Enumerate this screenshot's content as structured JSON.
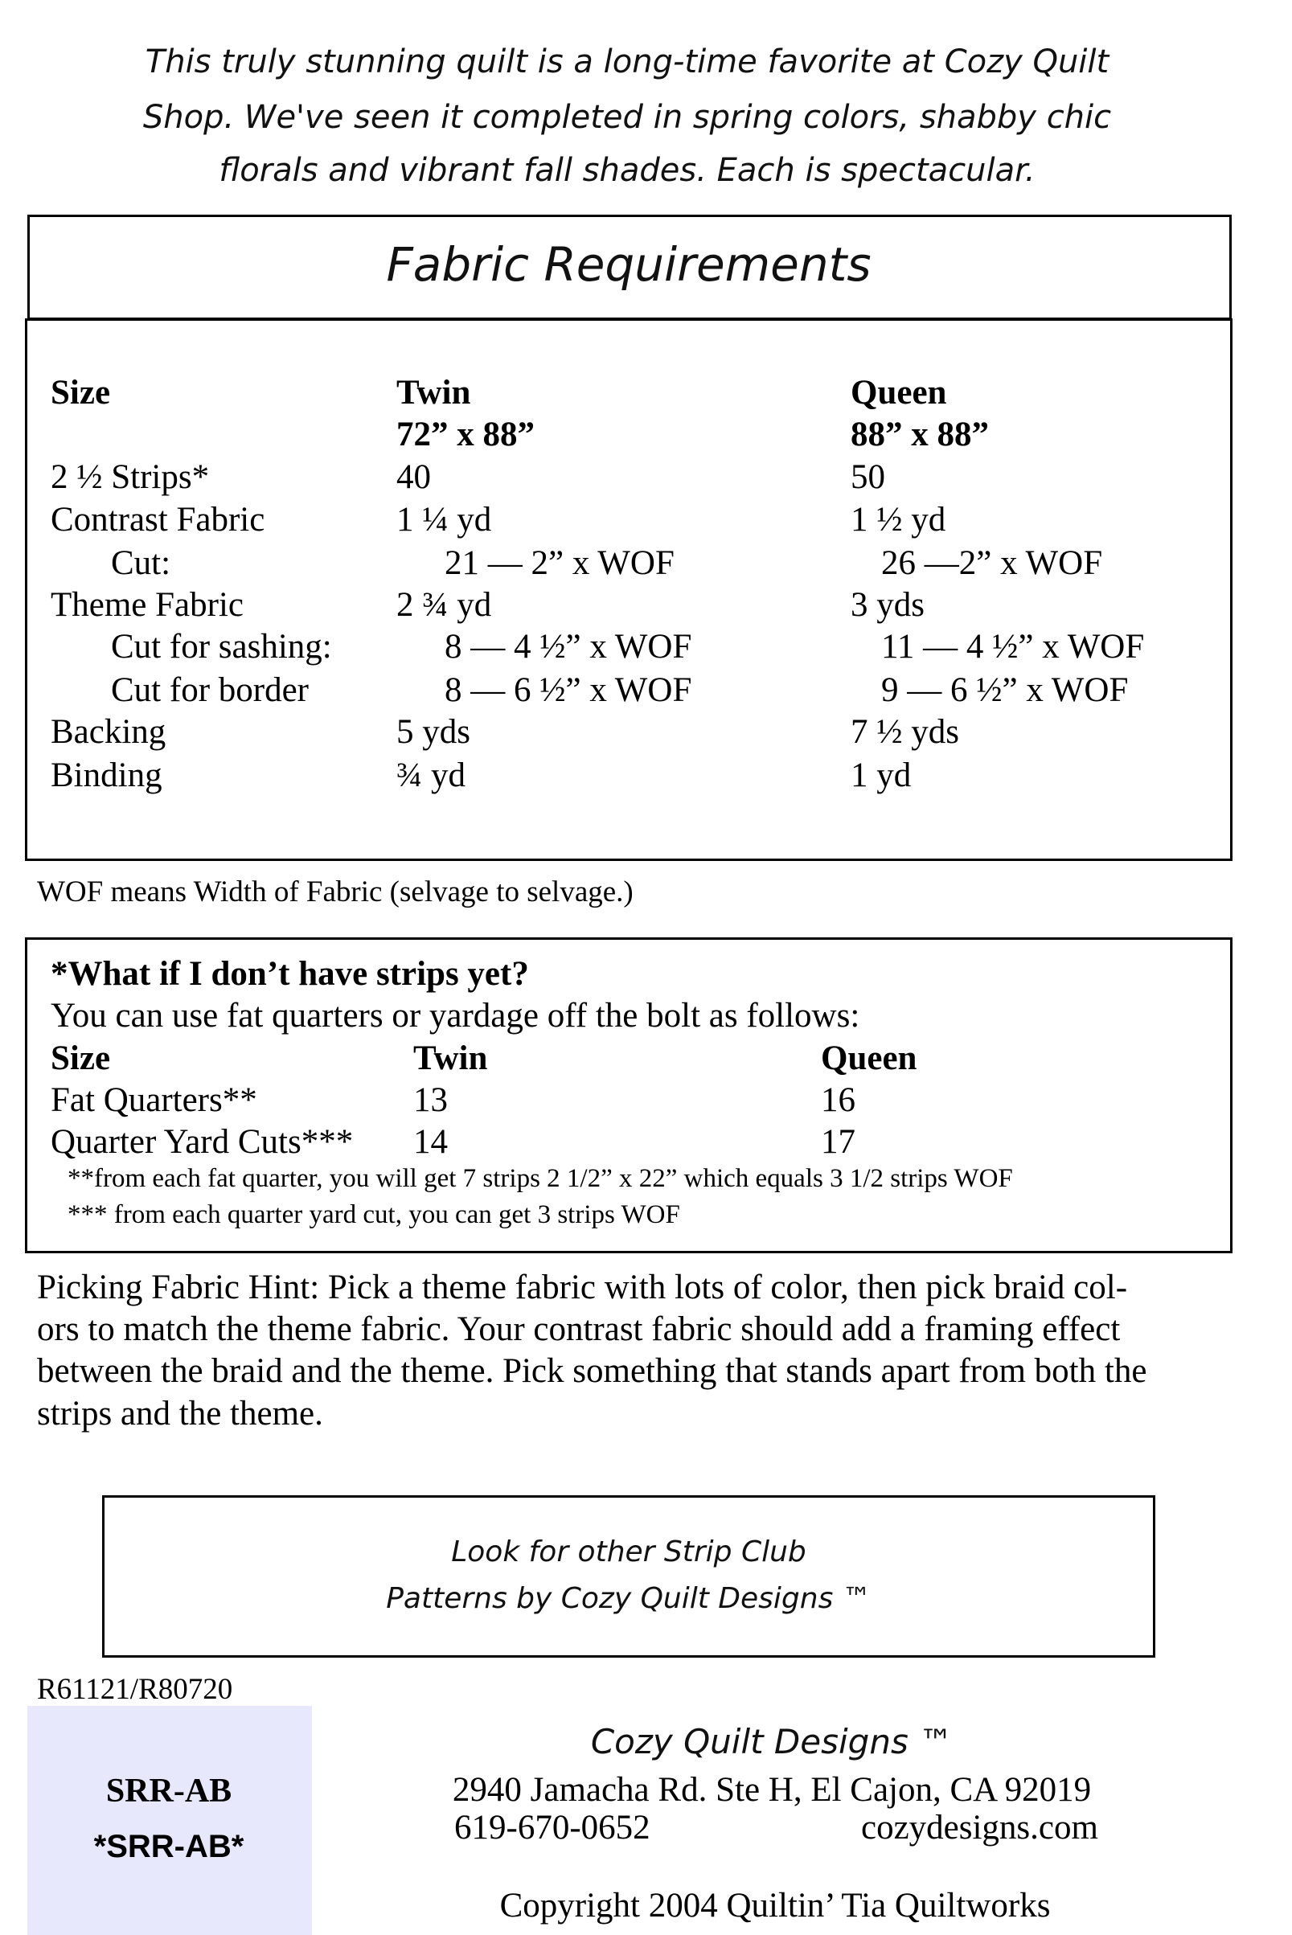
{
  "intro": {
    "lines": [
      "This truly stunning quilt is a long-time favorite at Cozy Quilt",
      "Shop. We've seen it completed in spring colors, shabby chic",
      "florals and vibrant fall shades. Each is spectacular."
    ]
  },
  "fabric_requirements": {
    "title": "Fabric Requirements",
    "headers": {
      "size": "Size",
      "twin": "Twin",
      "twin_dims": "72” x 88”",
      "queen": "Queen",
      "queen_dims": "88” x 88”"
    },
    "rows": [
      {
        "label": "2 ½ Strips*",
        "twin": "40",
        "queen": "50"
      },
      {
        "label": "Contrast Fabric",
        "twin": "1 ¼ yd",
        "queen": "1 ½ yd"
      },
      {
        "label": "Cut:",
        "twin": "21 — 2” x WOF",
        "queen": "26 —2” x WOF"
      },
      {
        "label": "Theme Fabric",
        "twin": "2 ¾ yd",
        "queen": "3 yds"
      },
      {
        "label": "Cut for sashing:",
        "twin": "8 — 4 ½” x WOF",
        "queen": "11 — 4 ½” x WOF"
      },
      {
        "label": "Cut for border",
        "twin": "8 — 6 ½” x WOF",
        "queen": "9 — 6 ½” x WOF"
      },
      {
        "label": "Backing",
        "twin": "5 yds",
        "queen": "7 ½ yds"
      },
      {
        "label": "Binding",
        "twin": "¾  yd",
        "queen": "1 yd"
      }
    ],
    "note": "WOF means Width of Fabric (selvage to selvage.)"
  },
  "strips_box": {
    "question": "*What if I don’t have strips yet?",
    "intro": "You can use fat quarters or yardage off the bolt as follows:",
    "headers": {
      "size": "Size",
      "twin": "Twin",
      "queen": "Queen"
    },
    "rows": [
      {
        "label": "Fat Quarters**",
        "twin": "13",
        "queen": "16"
      },
      {
        "label": "Quarter Yard Cuts***",
        "twin": "14",
        "queen": "17"
      }
    ],
    "notes": [
      "**from each fat quarter, you will get 7 strips 2 1/2” x 22” which equals 3 1/2 strips WOF",
      "*** from each quarter yard cut, you can get 3 strips WOF"
    ]
  },
  "hint": {
    "lines": [
      "Picking Fabric Hint: Pick a theme fabric with lots of color, then pick braid col-",
      "ors to match the theme fabric. Your contrast fabric should add a framing effect",
      "between the braid and the theme. Pick something that stands apart from both the",
      "strips and the theme."
    ]
  },
  "promo": {
    "lines": [
      "Look for other Strip Club",
      "Patterns by Cozy Quilt Designs ™"
    ]
  },
  "footer": {
    "revision": "R61121/R80720",
    "sku": "SRR-AB",
    "barcode_text": "*SRR-AB*",
    "panel_color": "#e8e8fc",
    "company": "Cozy Quilt Designs ™",
    "address": "2940 Jamacha Rd. Ste H, El Cajon, CA 92019",
    "phone": "619-670-0652",
    "website": "cozydesigns.com",
    "copyright": "Copyright 2004 Quiltin’ Tia Quiltworks"
  }
}
